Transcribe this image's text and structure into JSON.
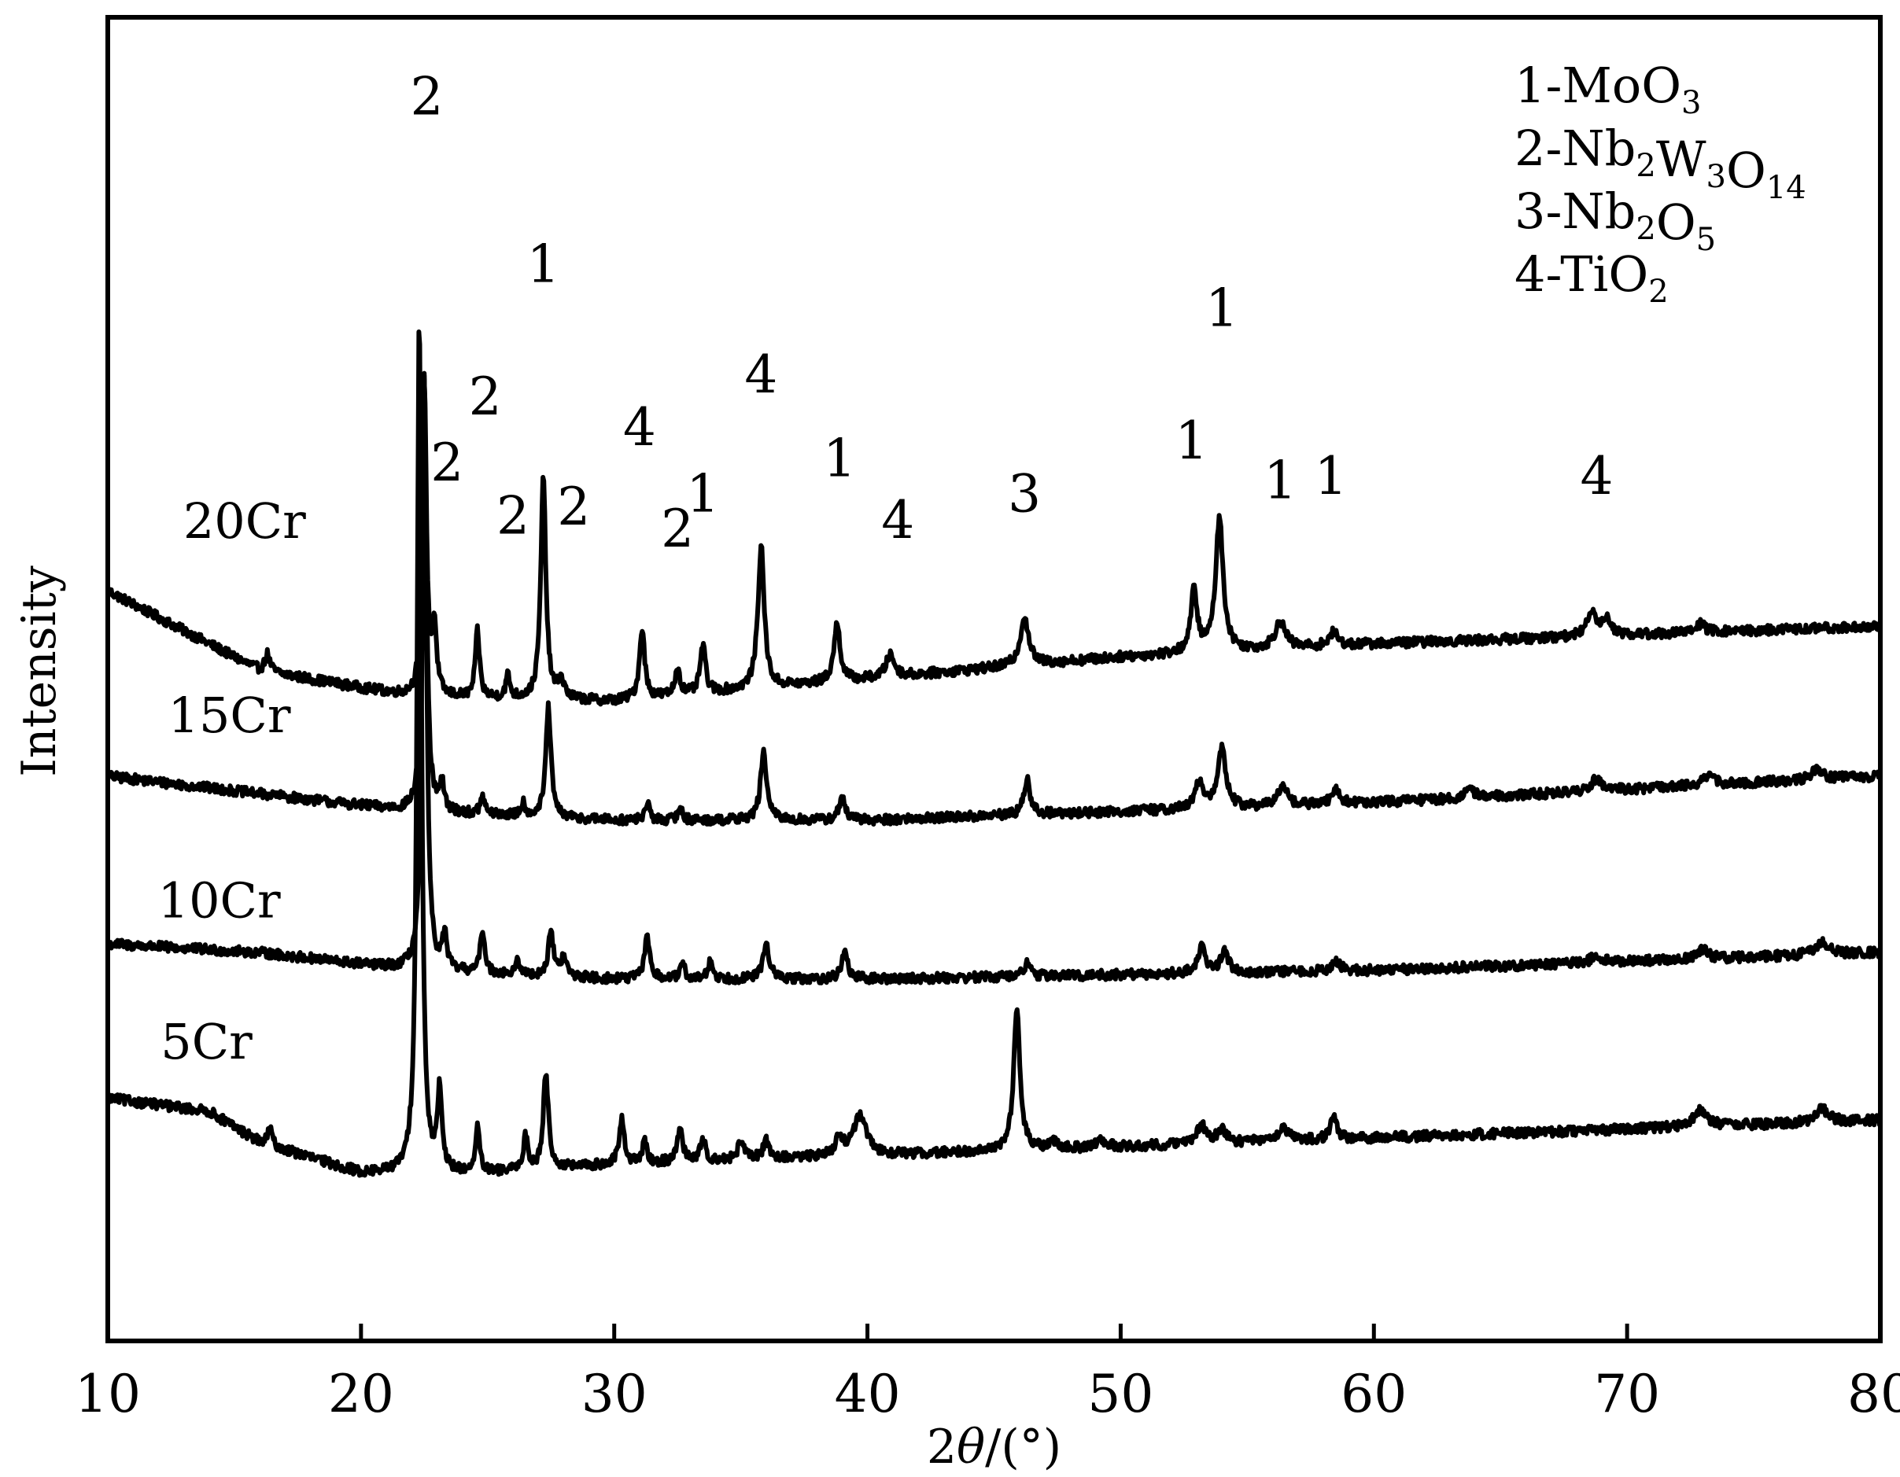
{
  "chart_data": {
    "type": "line",
    "title": "",
    "xlabel": "2θ/(°)",
    "ylabel": "Intensity",
    "xlim": [
      10,
      80
    ],
    "xticks": [
      10,
      20,
      30,
      40,
      50,
      60,
      70,
      80
    ],
    "y_ticks_shown": false,
    "grid": false,
    "legend_position": "top-right",
    "legend": [
      {
        "key": "1",
        "formula": [
          {
            "t": "MoO"
          },
          {
            "t": "3",
            "sub": true
          }
        ]
      },
      {
        "key": "2",
        "formula": [
          {
            "t": "Nb"
          },
          {
            "t": "2",
            "sub": true
          },
          {
            "t": "W"
          },
          {
            "t": "3",
            "sub": true
          },
          {
            "t": "O"
          },
          {
            "t": "14",
            "sub": true
          }
        ]
      },
      {
        "key": "3",
        "formula": [
          {
            "t": "Nb"
          },
          {
            "t": "2",
            "sub": true
          },
          {
            "t": "O"
          },
          {
            "t": "5",
            "sub": true
          }
        ]
      },
      {
        "key": "4",
        "formula": [
          {
            "t": "TiO"
          },
          {
            "t": "2",
            "sub": true
          }
        ]
      }
    ],
    "series": [
      {
        "name": "20Cr",
        "baseline": [
          [
            10,
            1.7
          ],
          [
            16,
            1.52
          ],
          [
            22,
            1.46
          ],
          [
            30,
            1.45
          ],
          [
            40,
            1.5
          ],
          [
            50,
            1.55
          ],
          [
            60,
            1.58
          ],
          [
            70,
            1.6
          ],
          [
            80,
            1.62
          ]
        ],
        "peaks": [
          [
            16.3,
            0.04,
            0.12
          ],
          [
            22.5,
            0.72,
            0.1
          ],
          [
            22.9,
            0.15,
            0.1
          ],
          [
            24.6,
            0.15,
            0.1
          ],
          [
            25.8,
            0.05,
            0.1
          ],
          [
            27.2,
            0.5,
            0.12
          ],
          [
            27.9,
            0.04,
            0.15
          ],
          [
            31.1,
            0.16,
            0.12
          ],
          [
            32.5,
            0.06,
            0.12
          ],
          [
            33.5,
            0.11,
            0.12
          ],
          [
            35.8,
            0.32,
            0.15
          ],
          [
            38.8,
            0.13,
            0.15
          ],
          [
            40.9,
            0.05,
            0.2
          ],
          [
            46.2,
            0.11,
            0.2
          ],
          [
            52.9,
            0.14,
            0.15
          ],
          [
            53.9,
            0.3,
            0.18
          ],
          [
            56.3,
            0.06,
            0.25
          ],
          [
            58.4,
            0.03,
            0.2
          ],
          [
            68.6,
            0.06,
            0.2
          ],
          [
            69.2,
            0.04,
            0.2
          ],
          [
            72.9,
            0.02,
            0.2
          ]
        ]
      },
      {
        "name": "15Cr",
        "baseline": [
          [
            10,
            1.28
          ],
          [
            16,
            1.24
          ],
          [
            22,
            1.2
          ],
          [
            30,
            1.18
          ],
          [
            40,
            1.18
          ],
          [
            50,
            1.2
          ],
          [
            60,
            1.22
          ],
          [
            70,
            1.25
          ],
          [
            80,
            1.28
          ]
        ],
        "peaks": [
          [
            22.5,
            0.98,
            0.1
          ],
          [
            23.2,
            0.06,
            0.1
          ],
          [
            24.8,
            0.04,
            0.1
          ],
          [
            26.4,
            0.03,
            0.1
          ],
          [
            27.4,
            0.25,
            0.12
          ],
          [
            31.3,
            0.04,
            0.1
          ],
          [
            32.6,
            0.03,
            0.1
          ],
          [
            35.9,
            0.15,
            0.15
          ],
          [
            39.0,
            0.05,
            0.15
          ],
          [
            46.3,
            0.08,
            0.15
          ],
          [
            53.1,
            0.06,
            0.18
          ],
          [
            54.0,
            0.14,
            0.18
          ],
          [
            56.4,
            0.05,
            0.2
          ],
          [
            58.5,
            0.03,
            0.2
          ],
          [
            63.8,
            0.02,
            0.2
          ],
          [
            68.8,
            0.03,
            0.25
          ],
          [
            73.2,
            0.02,
            0.3
          ],
          [
            77.5,
            0.02,
            0.3
          ]
        ]
      },
      {
        "name": "10Cr",
        "baseline": [
          [
            10,
            0.9
          ],
          [
            16,
            0.88
          ],
          [
            22,
            0.84
          ],
          [
            30,
            0.82
          ],
          [
            40,
            0.82
          ],
          [
            50,
            0.83
          ],
          [
            60,
            0.84
          ],
          [
            70,
            0.86
          ],
          [
            80,
            0.88
          ]
        ],
        "peaks": [
          [
            22.5,
            1.35,
            0.1
          ],
          [
            23.3,
            0.08,
            0.1
          ],
          [
            24.8,
            0.1,
            0.1
          ],
          [
            26.2,
            0.03,
            0.1
          ],
          [
            27.5,
            0.1,
            0.12
          ],
          [
            28.0,
            0.04,
            0.15
          ],
          [
            31.3,
            0.1,
            0.12
          ],
          [
            32.7,
            0.03,
            0.12
          ],
          [
            33.8,
            0.04,
            0.12
          ],
          [
            36.0,
            0.08,
            0.15
          ],
          [
            39.1,
            0.06,
            0.15
          ],
          [
            46.3,
            0.03,
            0.15
          ],
          [
            53.2,
            0.06,
            0.18
          ],
          [
            54.1,
            0.05,
            0.18
          ],
          [
            58.5,
            0.02,
            0.2
          ],
          [
            68.8,
            0.02,
            0.2
          ],
          [
            73.0,
            0.02,
            0.25
          ],
          [
            77.7,
            0.03,
            0.3
          ]
        ]
      },
      {
        "name": "5Cr",
        "baseline": [
          [
            10,
            0.55
          ],
          [
            14,
            0.52
          ],
          [
            16,
            0.45
          ],
          [
            20,
            0.38
          ],
          [
            25,
            0.38
          ],
          [
            30,
            0.4
          ],
          [
            40,
            0.42
          ],
          [
            50,
            0.44
          ],
          [
            60,
            0.46
          ],
          [
            70,
            0.48
          ],
          [
            80,
            0.5
          ]
        ],
        "peaks": [
          [
            16.4,
            0.04,
            0.1
          ],
          [
            22.3,
            1.95,
            0.1
          ],
          [
            23.1,
            0.18,
            0.1
          ],
          [
            24.6,
            0.1,
            0.1
          ],
          [
            26.5,
            0.08,
            0.1
          ],
          [
            27.3,
            0.22,
            0.12
          ],
          [
            30.3,
            0.1,
            0.12
          ],
          [
            31.2,
            0.05,
            0.1
          ],
          [
            32.6,
            0.08,
            0.12
          ],
          [
            33.5,
            0.05,
            0.12
          ],
          [
            35.0,
            0.04,
            0.15
          ],
          [
            36.0,
            0.04,
            0.15
          ],
          [
            38.9,
            0.04,
            0.2
          ],
          [
            39.7,
            0.09,
            0.3
          ],
          [
            45.9,
            0.32,
            0.15
          ],
          [
            47.3,
            0.02,
            0.15
          ],
          [
            49.2,
            0.02,
            0.2
          ],
          [
            53.2,
            0.04,
            0.25
          ],
          [
            54.0,
            0.03,
            0.2
          ],
          [
            56.4,
            0.03,
            0.25
          ],
          [
            58.4,
            0.05,
            0.15
          ],
          [
            72.9,
            0.04,
            0.3
          ],
          [
            77.7,
            0.03,
            0.3
          ]
        ]
      }
    ],
    "peak_annotations": [
      {
        "label": "2",
        "x": 22.6,
        "y": 2.78
      },
      {
        "label": "2",
        "x": 23.4,
        "y": 1.95
      },
      {
        "label": "2",
        "x": 24.9,
        "y": 2.1
      },
      {
        "label": "2",
        "x": 26.0,
        "y": 1.83
      },
      {
        "label": "1",
        "x": 27.2,
        "y": 2.4
      },
      {
        "label": "2",
        "x": 28.4,
        "y": 1.85
      },
      {
        "label": "4",
        "x": 31.0,
        "y": 2.03
      },
      {
        "label": "2",
        "x": 32.5,
        "y": 1.8
      },
      {
        "label": "1",
        "x": 33.5,
        "y": 1.88
      },
      {
        "label": "4",
        "x": 35.8,
        "y": 2.15
      },
      {
        "label": "1",
        "x": 38.9,
        "y": 1.96
      },
      {
        "label": "4",
        "x": 41.2,
        "y": 1.82
      },
      {
        "label": "3",
        "x": 46.2,
        "y": 1.88
      },
      {
        "label": "1",
        "x": 52.8,
        "y": 2.0
      },
      {
        "label": "1",
        "x": 54.0,
        "y": 2.3
      },
      {
        "label": "1",
        "x": 56.3,
        "y": 1.91
      },
      {
        "label": "1",
        "x": 58.3,
        "y": 1.92
      },
      {
        "label": "4",
        "x": 68.8,
        "y": 1.92
      }
    ],
    "curve_labels": [
      {
        "text": "20Cr",
        "x": 15.4,
        "y": 1.82
      },
      {
        "text": "15Cr",
        "x": 14.8,
        "y": 1.38
      },
      {
        "text": "10Cr",
        "x": 14.4,
        "y": 0.96
      },
      {
        "text": "5Cr",
        "x": 13.9,
        "y": 0.64
      }
    ]
  }
}
